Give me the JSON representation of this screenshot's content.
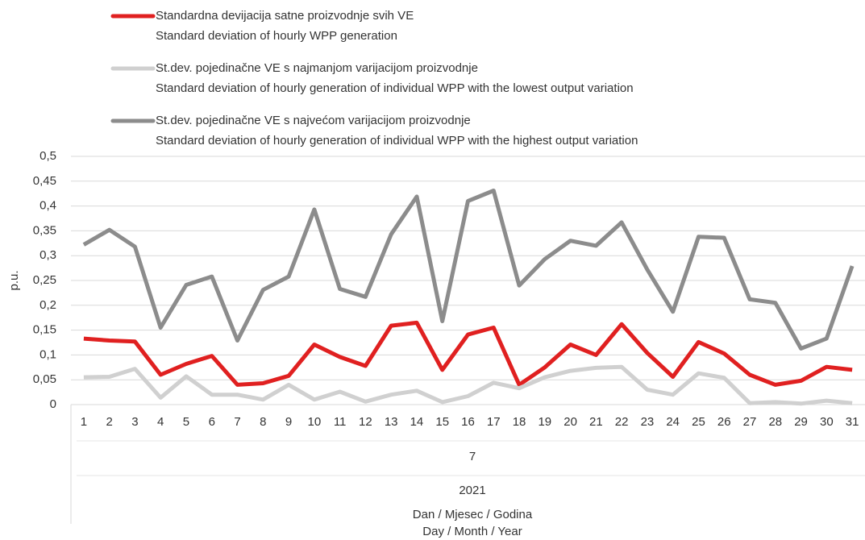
{
  "chart_data": {
    "type": "line",
    "ylabel": "p.u.",
    "xlabel": [
      "Dan / Mjesec / Godina",
      "Day / Month / Year"
    ],
    "x_groups": {
      "month": "7",
      "year": "2021"
    },
    "categories": [
      "1",
      "2",
      "3",
      "4",
      "5",
      "6",
      "7",
      "8",
      "9",
      "10",
      "11",
      "12",
      "13",
      "14",
      "15",
      "16",
      "17",
      "18",
      "19",
      "20",
      "21",
      "22",
      "23",
      "24",
      "25",
      "26",
      "27",
      "28",
      "29",
      "30",
      "31"
    ],
    "series": [
      {
        "name": "Standardna devijacija satne proizvodnje svih VE",
        "description": "Standard deviation of hourly WPP generation",
        "color": "#e02020",
        "values": [
          0.133,
          0.129,
          0.127,
          0.06,
          0.082,
          0.098,
          0.04,
          0.043,
          0.058,
          0.121,
          0.096,
          0.078,
          0.159,
          0.165,
          0.07,
          0.141,
          0.155,
          0.04,
          0.075,
          0.121,
          0.1,
          0.162,
          0.104,
          0.056,
          0.126,
          0.103,
          0.06,
          0.04,
          0.048,
          0.076,
          0.07
        ]
      },
      {
        "name": "St.dev. pojedinačne VE s najmanjom varijacijom proizvodnje",
        "description": "Standard deviation of hourly generation of individual WPP with the lowest output variation",
        "color": "#d0d0d0",
        "values": [
          0.055,
          0.056,
          0.072,
          0.014,
          0.057,
          0.02,
          0.02,
          0.01,
          0.04,
          0.01,
          0.026,
          0.006,
          0.02,
          0.028,
          0.005,
          0.017,
          0.044,
          0.033,
          0.055,
          0.068,
          0.074,
          0.076,
          0.03,
          0.02,
          0.063,
          0.054,
          0.003,
          0.005,
          0.002,
          0.008,
          0.003
        ]
      },
      {
        "name": "St.dev. pojedinačne VE s najvećom varijacijom proizvodnje",
        "description": "Standard deviation of hourly generation of individual WPP with the highest output variation",
        "color": "#8c8c8c",
        "values": [
          0.322,
          0.352,
          0.318,
          0.155,
          0.241,
          0.258,
          0.129,
          0.231,
          0.258,
          0.393,
          0.233,
          0.217,
          0.343,
          0.419,
          0.168,
          0.41,
          0.431,
          0.24,
          0.293,
          0.33,
          0.32,
          0.367,
          0.272,
          0.187,
          0.338,
          0.336,
          0.212,
          0.205,
          0.113,
          0.133,
          0.279
        ]
      }
    ],
    "ylim": [
      0,
      0.5
    ],
    "yticks": [
      0,
      {
        "value": 0.05,
        "label": "0,05"
      },
      {
        "value": 0.1,
        "label": "0,1"
      },
      {
        "value": 0.15,
        "label": "0,15"
      },
      {
        "value": 0.2,
        "label": "0,2"
      },
      {
        "value": 0.25,
        "label": "0,25"
      },
      {
        "value": 0.3,
        "label": "0,3"
      },
      {
        "value": 0.35,
        "label": "0,35"
      },
      {
        "value": 0.4,
        "label": "0,4"
      },
      {
        "value": 0.45,
        "label": "0,45"
      },
      {
        "value": 0.5,
        "label": "0,5"
      }
    ],
    "grid": true
  }
}
